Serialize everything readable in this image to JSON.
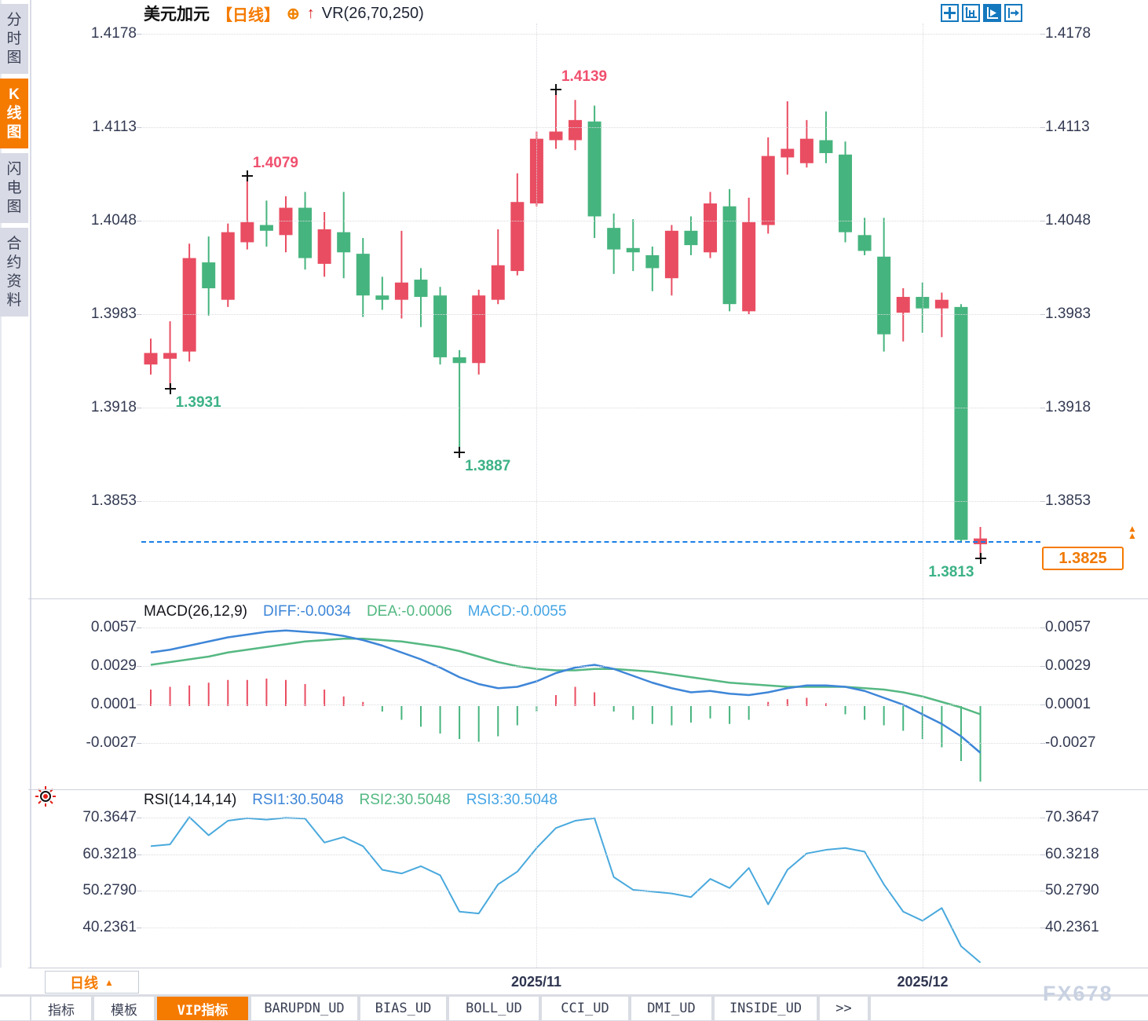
{
  "header": {
    "symbol": "美元加元",
    "period_badge": "【日线】",
    "overlay_indicator": "VR(26,70,250)",
    "icons": {
      "add_overlay": "⊕",
      "up_arrow": "↑"
    }
  },
  "sidebar": {
    "items": [
      {
        "label": "分时图",
        "active": false
      },
      {
        "label": "K线图",
        "active": true
      },
      {
        "label": "闪电图",
        "active": false
      },
      {
        "label": "合约资料",
        "active": false
      }
    ]
  },
  "toolbar": {
    "icons": [
      "move-icon",
      "fit-scale-icon",
      "auto-scroll-icon",
      "go-latest-icon"
    ]
  },
  "price_axis": {
    "labels": [
      "1.4178",
      "1.4113",
      "1.4048",
      "1.3983",
      "1.3918",
      "1.3853"
    ]
  },
  "current_price": {
    "value": "1.3825",
    "arrow": "▲"
  },
  "macd_panel": {
    "title": "MACD(26,12,9)",
    "diff_label": "DIFF:-0.0034",
    "dea_label": "DEA:-0.0006",
    "macd_label": "MACD:-0.0055",
    "axis": [
      "0.0057",
      "0.0029",
      "0.0001",
      "-0.0027"
    ]
  },
  "rsi_panel": {
    "title": "RSI(14,14,14)",
    "rsi1_label": "RSI1:30.5048",
    "rsi2_label": "RSI2:30.5048",
    "rsi3_label": "RSI3:30.5048",
    "axis": [
      "70.3647",
      "60.3218",
      "50.2790",
      "40.2361"
    ]
  },
  "xaxis": {
    "labels": [
      "2025/11",
      "2025/12"
    ],
    "period_selector": "日线",
    "period_arrow": "▲"
  },
  "bottom_tabs": [
    {
      "label": "指标",
      "active": false
    },
    {
      "label": "模板",
      "active": false
    },
    {
      "label": "VIP指标",
      "active": true
    },
    {
      "label": "BARUPDN_UD",
      "active": false
    },
    {
      "label": "BIAS_UD",
      "active": false
    },
    {
      "label": "BOLL_UD",
      "active": false
    },
    {
      "label": "CCI_UD",
      "active": false
    },
    {
      "label": "DMI_UD",
      "active": false
    },
    {
      "label": "INSIDE_UD",
      "active": false
    },
    {
      "label": ">>",
      "active": false
    }
  ],
  "watermark": "FX678",
  "colors": {
    "up": "#e94d62",
    "down": "#46b47e",
    "diff_line": "#3e86d8",
    "dea_line": "#55b882",
    "rsi_line": "#49a9dd",
    "accent_orange": "#f57a00",
    "current_price_line": "#1a7fe6",
    "axis_text": "#333a52",
    "grid": "#dadbe0",
    "label_high": "#f0506e",
    "label_low": "#3cb286",
    "toolbar_blue": "#1478be",
    "marker": "#111111"
  },
  "chart_data": [
    {
      "type": "candlestick",
      "title": "美元加元 日线",
      "ylim": [
        1.38,
        1.419
      ],
      "y_ticks": [
        1.4178,
        1.4113,
        1.4048,
        1.3983,
        1.3918,
        1.3853
      ],
      "x_axis_dates": [
        "2025/11",
        "2025/12"
      ],
      "x_axis_date_indices": [
        20,
        40
      ],
      "last_price": 1.3825,
      "ohlc": [
        [
          1.3948,
          1.3966,
          1.3941,
          1.3956
        ],
        [
          1.3952,
          1.3978,
          1.3931,
          1.3956
        ],
        [
          1.3957,
          1.4032,
          1.395,
          1.4022
        ],
        [
          1.4019,
          1.4037,
          1.3982,
          1.4001
        ],
        [
          1.3993,
          1.4046,
          1.3988,
          1.404
        ],
        [
          1.4033,
          1.4079,
          1.4028,
          1.4047
        ],
        [
          1.4045,
          1.4062,
          1.403,
          1.4041
        ],
        [
          1.4038,
          1.4065,
          1.4026,
          1.4057
        ],
        [
          1.4057,
          1.4068,
          1.4014,
          1.4022
        ],
        [
          1.4018,
          1.4054,
          1.4009,
          1.4042
        ],
        [
          1.404,
          1.4068,
          1.4008,
          1.4026
        ],
        [
          1.4025,
          1.4036,
          1.3981,
          1.3996
        ],
        [
          1.3996,
          1.4009,
          1.3986,
          1.3993
        ],
        [
          1.3993,
          1.4041,
          1.398,
          1.4005
        ],
        [
          1.4007,
          1.4015,
          1.3974,
          1.3995
        ],
        [
          1.3996,
          1.4002,
          1.3948,
          1.3953
        ],
        [
          1.3953,
          1.3958,
          1.3887,
          1.3949
        ],
        [
          1.3949,
          1.4,
          1.3941,
          1.3996
        ],
        [
          1.3993,
          1.4042,
          1.399,
          1.4017
        ],
        [
          1.4013,
          1.4081,
          1.401,
          1.4061
        ],
        [
          1.406,
          1.411,
          1.4058,
          1.4105
        ],
        [
          1.4104,
          1.4139,
          1.4098,
          1.411
        ],
        [
          1.4104,
          1.4132,
          1.4097,
          1.4118
        ],
        [
          1.4117,
          1.4128,
          1.4036,
          1.4051
        ],
        [
          1.4043,
          1.4053,
          1.4011,
          1.4028
        ],
        [
          1.4029,
          1.4049,
          1.4013,
          1.4026
        ],
        [
          1.4024,
          1.403,
          1.3999,
          1.4015
        ],
        [
          1.4008,
          1.4045,
          1.3996,
          1.4041
        ],
        [
          1.4041,
          1.4051,
          1.4024,
          1.4031
        ],
        [
          1.4026,
          1.4068,
          1.4022,
          1.406
        ],
        [
          1.4058,
          1.407,
          1.3985,
          1.399
        ],
        [
          1.3985,
          1.4064,
          1.3983,
          1.4047
        ],
        [
          1.4045,
          1.4106,
          1.4039,
          1.4093
        ],
        [
          1.4092,
          1.4131,
          1.408,
          1.4098
        ],
        [
          1.4088,
          1.4118,
          1.4085,
          1.4105
        ],
        [
          1.4104,
          1.4124,
          1.4088,
          1.4095
        ],
        [
          1.4094,
          1.4103,
          1.4033,
          1.404
        ],
        [
          1.4038,
          1.405,
          1.4024,
          1.4027
        ],
        [
          1.4023,
          1.405,
          1.3957,
          1.3969
        ],
        [
          1.3984,
          1.4001,
          1.3964,
          1.3995
        ],
        [
          1.3995,
          1.4005,
          1.397,
          1.3987
        ],
        [
          1.3987,
          1.3998,
          1.3967,
          1.3993
        ],
        [
          1.3988,
          1.399,
          1.3824,
          1.3826
        ],
        [
          1.3823,
          1.3835,
          1.3813,
          1.3827
        ]
      ],
      "marked_points": [
        {
          "index": 1,
          "price": 1.3931,
          "label": "1.3931",
          "kind": "low",
          "align": "right"
        },
        {
          "index": 5,
          "price": 1.4079,
          "label": "1.4079",
          "kind": "high",
          "align": "right"
        },
        {
          "index": 16,
          "price": 1.3887,
          "label": "1.3887",
          "kind": "low",
          "align": "right"
        },
        {
          "index": 21,
          "price": 1.4139,
          "label": "1.4139",
          "kind": "high",
          "align": "right"
        },
        {
          "index": 43,
          "price": 1.3813,
          "label": "1.3813",
          "kind": "low",
          "align": "left"
        }
      ]
    },
    {
      "type": "macd",
      "title": "MACD(26,12,9)",
      "y_ticks": [
        0.0057,
        0.0029,
        0.0001,
        -0.0027
      ],
      "diff": [
        0.0039,
        0.0041,
        0.0044,
        0.0047,
        0.005,
        0.0052,
        0.0054,
        0.0055,
        0.0054,
        0.0053,
        0.0051,
        0.0048,
        0.0044,
        0.0039,
        0.0034,
        0.0028,
        0.0021,
        0.0016,
        0.0013,
        0.0014,
        0.0018,
        0.0024,
        0.0028,
        0.003,
        0.0027,
        0.0022,
        0.0017,
        0.0013,
        0.001,
        0.0011,
        0.0009,
        0.0008,
        0.001,
        0.0013,
        0.0015,
        0.0015,
        0.0014,
        0.0011,
        0.0006,
        0.0001,
        -0.0006,
        -0.0013,
        -0.0022,
        -0.0034
      ],
      "dea": [
        0.003,
        0.0032,
        0.0034,
        0.0036,
        0.0039,
        0.0041,
        0.0043,
        0.0045,
        0.0047,
        0.0048,
        0.0049,
        0.0049,
        0.0048,
        0.0047,
        0.0045,
        0.0043,
        0.004,
        0.0036,
        0.0032,
        0.0029,
        0.0027,
        0.0026,
        0.0026,
        0.0027,
        0.0027,
        0.0026,
        0.0025,
        0.0023,
        0.0021,
        0.0019,
        0.0017,
        0.0016,
        0.0015,
        0.0014,
        0.0014,
        0.0014,
        0.0014,
        0.0013,
        0.0012,
        0.001,
        0.0007,
        0.0003,
        -0.0001,
        -0.0006
      ],
      "histogram": [
        0.0012,
        0.0014,
        0.0015,
        0.0017,
        0.0019,
        0.0019,
        0.002,
        0.0019,
        0.0016,
        0.0012,
        0.0007,
        0.0003,
        -0.0004,
        -0.001,
        -0.0015,
        -0.002,
        -0.0024,
        -0.0026,
        -0.0022,
        -0.0014,
        -0.0004,
        0.0008,
        0.0014,
        0.001,
        -0.0004,
        -0.001,
        -0.0013,
        -0.0014,
        -0.0012,
        -0.0009,
        -0.0013,
        -0.001,
        0.0003,
        0.0005,
        0.0006,
        0.0002,
        -0.0006,
        -0.001,
        -0.0014,
        -0.0018,
        -0.0024,
        -0.003,
        -0.004,
        -0.0055
      ]
    },
    {
      "type": "line",
      "title": "RSI(14,14,14)",
      "y_ticks": [
        70.3647,
        60.3218,
        50.279,
        40.2361
      ],
      "rsi": [
        62.5,
        63,
        70.5,
        65.5,
        69.5,
        70.2,
        69.8,
        70.3,
        70.1,
        63.5,
        65,
        62.5,
        56,
        55,
        57,
        54.5,
        44.5,
        44,
        52,
        55.5,
        62,
        67.5,
        69.5,
        70.2,
        54,
        50.5,
        50,
        49.5,
        48.5,
        53.5,
        51,
        56.5,
        46.5,
        56,
        60.5,
        61.5,
        62,
        61,
        52,
        44.5,
        42,
        45.5,
        35,
        30.5
      ]
    }
  ]
}
